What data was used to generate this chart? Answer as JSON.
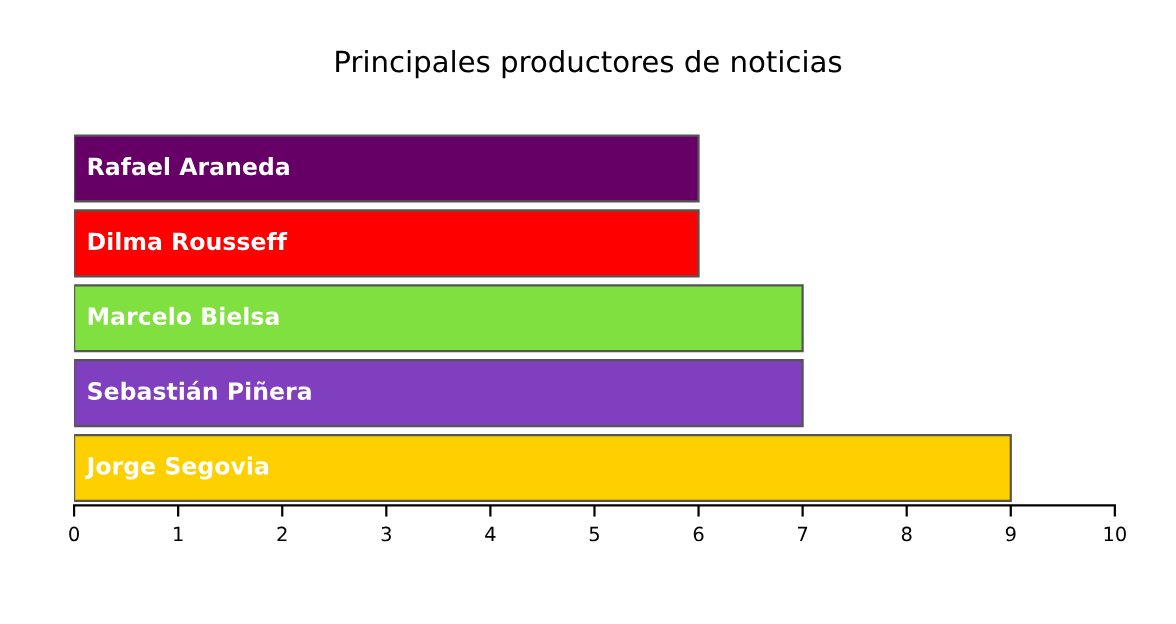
{
  "chart_data": {
    "type": "bar",
    "orientation": "horizontal",
    "title": "Principales productores de noticias",
    "categories": [
      "Rafael Araneda",
      "Dilma Rousseff",
      "Marcelo Bielsa",
      "Sebastián Piñera",
      "Jorge Segovia"
    ],
    "values": [
      6,
      6,
      7,
      7,
      9
    ],
    "colors": [
      "#660066",
      "#ff0000",
      "#80e040",
      "#7f3fbf",
      "#ffd000"
    ],
    "xlim": [
      0,
      10
    ],
    "xticks": [
      0,
      1,
      2,
      3,
      4,
      5,
      6,
      7,
      8,
      9,
      10
    ],
    "grid": false,
    "legend": false
  }
}
